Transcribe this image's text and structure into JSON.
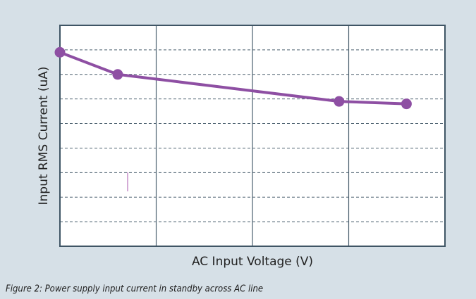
{
  "chart_data": {
    "type": "line",
    "xlabel": "AC Input Voltage (V)",
    "ylabel": "Input RMS Current (uA)",
    "caption": "Figure 2: Power supply input current in standby across AC line",
    "x": [
      0,
      0.6,
      2.9,
      3.6
    ],
    "series": [
      {
        "color": "#8e4fa3",
        "values": [
          7.9,
          7.0,
          5.9,
          5.8
        ]
      }
    ],
    "xlim": [
      0,
      4
    ],
    "xticks": [
      1,
      2,
      3
    ],
    "ylim": [
      0,
      9
    ],
    "yticks": [
      1,
      2,
      3,
      4,
      5,
      6,
      7,
      8
    ],
    "grid": true
  }
}
